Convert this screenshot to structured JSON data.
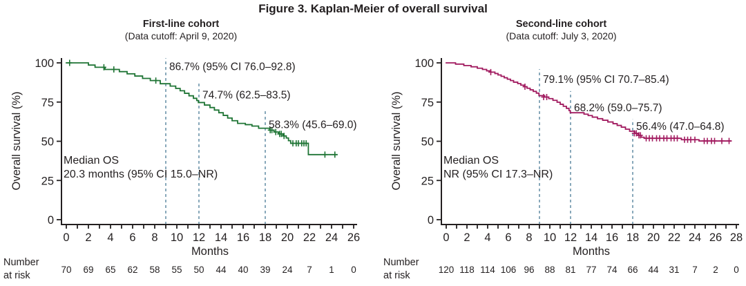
{
  "figure": {
    "title": "Figure 3. Kaplan-Meier of overall survival",
    "risk_label": [
      "Number",
      "at risk"
    ]
  },
  "colors": {
    "axis": "#231f20",
    "text": "#231f20",
    "dashed_line": "#6b93a9",
    "first_line_curve": "#1e7434",
    "second_line_curve": "#a11a5f"
  },
  "chart_data": [
    {
      "type": "line",
      "variant": "kaplan-meier-step",
      "title": "First-line cohort",
      "subtitle": "(Data cutoff: April 9, 2020)",
      "xlabel": "Months",
      "ylabel": "Overall survival (%)",
      "xlim": [
        0,
        26
      ],
      "ylim": [
        0,
        100
      ],
      "yticks": [
        0,
        25,
        50,
        75,
        100
      ],
      "xtick_label_step": 2,
      "grid": false,
      "color": "#1e7434",
      "median_os": {
        "line1": "Median OS",
        "line2": "20.3 months (95% CI 15.0–NR)"
      },
      "landmarks": [
        {
          "month": 9,
          "label": "86.7% (95% CI 76.0–92.8)",
          "line_top_pct": 103,
          "label_top_pct": 101
        },
        {
          "month": 12,
          "label": "74.7% (62.5–83.5)",
          "line_top_pct": 88,
          "label_top_pct": 83
        },
        {
          "month": 18,
          "label": "58.3% (45.6–69.0)",
          "line_top_pct": 70,
          "label_top_pct": 64
        }
      ],
      "curve": [
        [
          0,
          100
        ],
        [
          2.0,
          98.6
        ],
        [
          2.6,
          97.2
        ],
        [
          3.5,
          95.8
        ],
        [
          4.8,
          94.4
        ],
        [
          5.5,
          93.0
        ],
        [
          6.2,
          91.6
        ],
        [
          6.9,
          90.1
        ],
        [
          7.6,
          88.7
        ],
        [
          8.5,
          86.7
        ],
        [
          9.4,
          85.2
        ],
        [
          9.9,
          83.7
        ],
        [
          10.3,
          82.2
        ],
        [
          10.7,
          80.6
        ],
        [
          11.1,
          79.0
        ],
        [
          11.5,
          77.4
        ],
        [
          11.8,
          76.0
        ],
        [
          11.95,
          74.7
        ],
        [
          12.5,
          73.1
        ],
        [
          13.0,
          71.5
        ],
        [
          13.4,
          69.9
        ],
        [
          13.8,
          68.2
        ],
        [
          14.2,
          66.5
        ],
        [
          14.6,
          64.8
        ],
        [
          15.0,
          63.1
        ],
        [
          15.5,
          61.4
        ],
        [
          16.2,
          60.6
        ],
        [
          16.8,
          59.7
        ],
        [
          17.4,
          58.3
        ],
        [
          18.4,
          57.1
        ],
        [
          18.8,
          55.9
        ],
        [
          19.2,
          54.7
        ],
        [
          19.6,
          53.4
        ],
        [
          19.9,
          52.1
        ],
        [
          20.1,
          50.4
        ],
        [
          20.3,
          48.7
        ],
        [
          21.9,
          41.5
        ],
        [
          24.5,
          41.5
        ]
      ],
      "censors": [
        [
          0.3,
          100
        ],
        [
          3.4,
          97.2
        ],
        [
          4.3,
          95.8
        ],
        [
          8.1,
          88.7
        ],
        [
          18.45,
          57.1
        ],
        [
          18.6,
          57.1
        ],
        [
          18.95,
          55.9
        ],
        [
          19.3,
          54.7
        ],
        [
          19.45,
          54.7
        ],
        [
          19.7,
          53.4
        ],
        [
          20.5,
          48.7
        ],
        [
          20.8,
          48.7
        ],
        [
          21.0,
          48.7
        ],
        [
          21.3,
          48.7
        ],
        [
          21.5,
          48.7
        ],
        [
          21.7,
          48.7
        ],
        [
          23.4,
          41.5
        ],
        [
          24.3,
          41.5
        ]
      ],
      "number_at_risk": {
        "months": [
          0,
          2,
          4,
          6,
          8,
          10,
          12,
          14,
          16,
          18,
          20,
          22,
          24,
          26
        ],
        "values": [
          70,
          69,
          65,
          62,
          58,
          55,
          50,
          44,
          40,
          39,
          24,
          7,
          1,
          0
        ]
      }
    },
    {
      "type": "line",
      "variant": "kaplan-meier-step",
      "title": "Second-line cohort",
      "subtitle": "(Data cutoff: July 3, 2020)",
      "xlabel": "Months",
      "ylabel": "Overall survival (%)",
      "xlim": [
        0,
        28
      ],
      "ylim": [
        0,
        100
      ],
      "yticks": [
        0,
        25,
        50,
        75,
        100
      ],
      "xtick_label_step": 2,
      "grid": false,
      "color": "#a11a5f",
      "median_os": {
        "line1": "Median OS",
        "line2": "NR (95% CI 17.3–NR)"
      },
      "landmarks": [
        {
          "month": 9,
          "label": "79.1% (95% CI 70.7–85.4)",
          "line_top_pct": 96,
          "label_top_pct": 93
        },
        {
          "month": 12,
          "label": "68.2% (59.0–75.7)",
          "line_top_pct": 82,
          "label_top_pct": 75
        },
        {
          "month": 18,
          "label": "56.4% (47.0–64.8)",
          "line_top_pct": 64,
          "label_top_pct": 63
        }
      ],
      "curve": [
        [
          0,
          100
        ],
        [
          0.9,
          99.2
        ],
        [
          1.7,
          98.3
        ],
        [
          2.4,
          97.5
        ],
        [
          3.0,
          96.6
        ],
        [
          3.5,
          95.8
        ],
        [
          3.9,
          94.9
        ],
        [
          4.3,
          94.1
        ],
        [
          4.7,
          93.2
        ],
        [
          5.0,
          92.3
        ],
        [
          5.3,
          91.4
        ],
        [
          5.6,
          90.5
        ],
        [
          5.9,
          89.6
        ],
        [
          6.2,
          88.7
        ],
        [
          6.5,
          87.7
        ],
        [
          6.9,
          86.8
        ],
        [
          7.2,
          85.8
        ],
        [
          7.5,
          84.8
        ],
        [
          7.8,
          83.8
        ],
        [
          8.1,
          82.8
        ],
        [
          8.4,
          81.8
        ],
        [
          8.7,
          80.7
        ],
        [
          8.95,
          79.1
        ],
        [
          9.5,
          78.2
        ],
        [
          9.9,
          77.2
        ],
        [
          10.3,
          76.1
        ],
        [
          10.7,
          74.9
        ],
        [
          11.0,
          73.6
        ],
        [
          11.3,
          72.3
        ],
        [
          11.6,
          71.0
        ],
        [
          11.85,
          69.6
        ],
        [
          11.97,
          68.2
        ],
        [
          13.3,
          67.3
        ],
        [
          13.7,
          66.4
        ],
        [
          14.1,
          65.4
        ],
        [
          14.6,
          64.4
        ],
        [
          15.1,
          63.4
        ],
        [
          15.6,
          62.3
        ],
        [
          16.1,
          61.2
        ],
        [
          16.5,
          60.1
        ],
        [
          16.9,
          59.0
        ],
        [
          17.3,
          57.7
        ],
        [
          17.7,
          56.4
        ],
        [
          18.2,
          55.1
        ],
        [
          18.5,
          53.8
        ],
        [
          18.8,
          52.6
        ],
        [
          19.1,
          51.9
        ],
        [
          22.7,
          51.0
        ],
        [
          24.4,
          50.2
        ],
        [
          27.5,
          50.2
        ]
      ],
      "censors": [
        [
          4.3,
          94.1
        ],
        [
          7.6,
          84.8
        ],
        [
          9.4,
          78.2
        ],
        [
          9.7,
          78.2
        ],
        [
          18.15,
          55.1
        ],
        [
          18.35,
          55.1
        ],
        [
          18.6,
          53.8
        ],
        [
          18.75,
          53.8
        ],
        [
          19.3,
          51.9
        ],
        [
          19.6,
          51.9
        ],
        [
          19.9,
          51.9
        ],
        [
          20.3,
          51.9
        ],
        [
          20.6,
          51.9
        ],
        [
          21.0,
          51.9
        ],
        [
          21.3,
          51.9
        ],
        [
          21.7,
          51.9
        ],
        [
          22.0,
          51.9
        ],
        [
          22.3,
          51.9
        ],
        [
          23.0,
          51.0
        ],
        [
          23.3,
          51.0
        ],
        [
          23.6,
          51.0
        ],
        [
          24.0,
          51.0
        ],
        [
          24.9,
          50.2
        ],
        [
          25.2,
          50.2
        ],
        [
          25.6,
          50.2
        ],
        [
          25.9,
          50.2
        ],
        [
          26.6,
          50.2
        ],
        [
          27.3,
          50.2
        ]
      ],
      "number_at_risk": {
        "months": [
          0,
          2,
          4,
          6,
          8,
          10,
          12,
          14,
          16,
          18,
          20,
          22,
          24,
          26,
          28
        ],
        "values": [
          120,
          118,
          114,
          106,
          96,
          88,
          81,
          77,
          74,
          66,
          44,
          31,
          7,
          2,
          0
        ]
      }
    }
  ]
}
